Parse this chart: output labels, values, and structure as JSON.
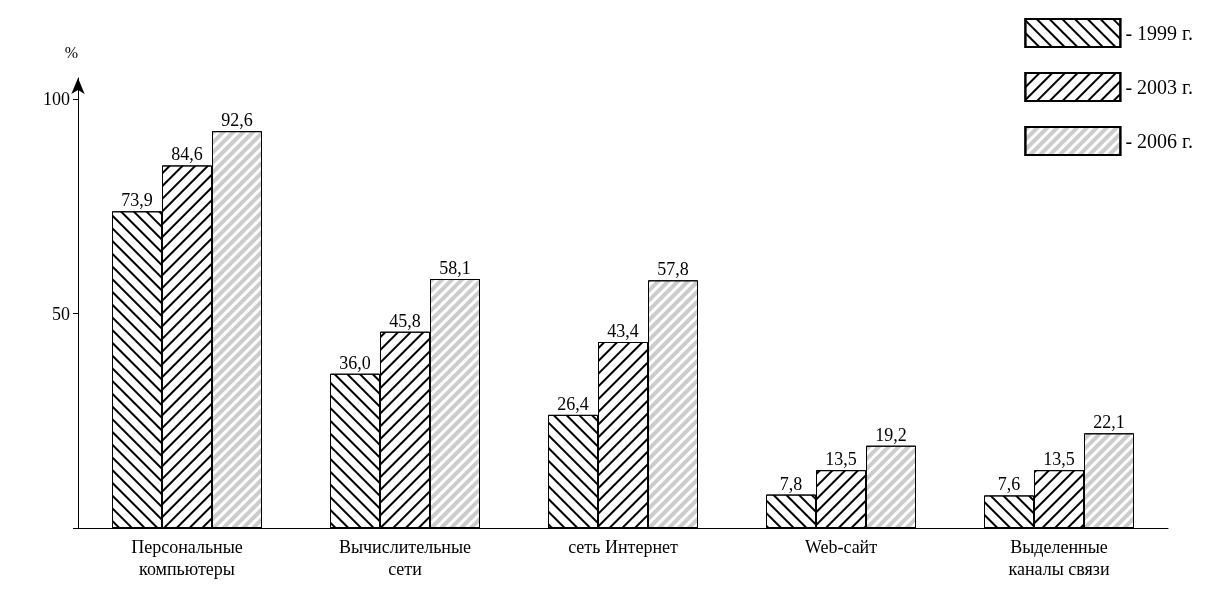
{
  "chart_data": {
    "type": "bar",
    "ylabel": "%",
    "categories": [
      "Персональные\nкомпьютеры",
      "Вычислительные\nсети",
      "сеть Интернет",
      "Web-сайт",
      "Выделенные\nканалы связи"
    ],
    "series": [
      {
        "name": "- 1999 г.",
        "color": "#ffffff",
        "values": [
          73.9,
          36.0,
          26.4,
          7.8,
          7.6
        ],
        "value_labels": [
          "73,9",
          "36,0",
          "26,4",
          "7,8",
          "7,6"
        ]
      },
      {
        "name": "- 2003 г.",
        "color": "#ffffff",
        "values": [
          84.6,
          45.8,
          43.4,
          13.5,
          13.5
        ],
        "value_labels": [
          "84,6",
          "45,8",
          "43,4",
          "13,5",
          "13,5"
        ]
      },
      {
        "name": "- 2006 г.",
        "color": "#ffffff",
        "values": [
          92.6,
          58.1,
          57.8,
          19.2,
          22.1
        ],
        "value_labels": [
          "92,6",
          "58,1",
          "57,8",
          "19,2",
          "22,1"
        ]
      }
    ],
    "ylim": [
      0,
      105
    ],
    "yticks": [
      {
        "value": 0,
        "label": null
      },
      50,
      100
    ],
    "grid": false,
    "legend": "top right"
  }
}
